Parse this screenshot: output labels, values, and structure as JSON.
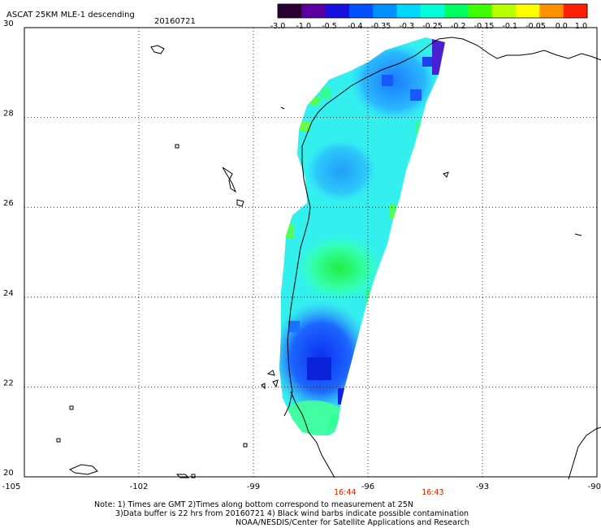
{
  "header": {
    "title": "ASCAT 25KM MLE-1 descending",
    "date": "20160721"
  },
  "colorbar": {
    "labels": [
      "-3.0",
      "-1.0",
      "-0.5",
      "-0.4",
      "-0.35",
      "-0.3",
      "-0.25",
      "-0.2",
      "-0.15",
      "-0.1",
      "-0.05",
      "0.0",
      "1.0"
    ],
    "colors": [
      "#2a0033",
      "#5a00a0",
      "#1a10e0",
      "#0050ff",
      "#0090ff",
      "#00d8ff",
      "#00ffd8",
      "#00ff60",
      "#40ff00",
      "#b8ff00",
      "#ffff00",
      "#ff9000",
      "#ff2000"
    ]
  },
  "map": {
    "lon_labels": [
      "-105",
      "-102",
      "-99",
      "-96",
      "-93",
      "-90"
    ],
    "lat_labels": [
      "30",
      "28",
      "26",
      "24",
      "22",
      "20"
    ],
    "lon_range": [
      -105,
      -90
    ],
    "lat_range": [
      20,
      30
    ],
    "grid": true
  },
  "times": [
    {
      "label": "16:44",
      "lon": -96.6
    },
    {
      "label": "16:43",
      "lon": -94.3
    }
  ],
  "notes": [
    "Note: 1) Times are GMT 2)Times along bottom correspond to measurement at 25N",
    "3)Data buffer is 22 hrs from 20160721 4) Black wind barbs indicate possible contamination",
    "NOAA/NESDIS/Center for Satellite Applications and Research"
  ]
}
